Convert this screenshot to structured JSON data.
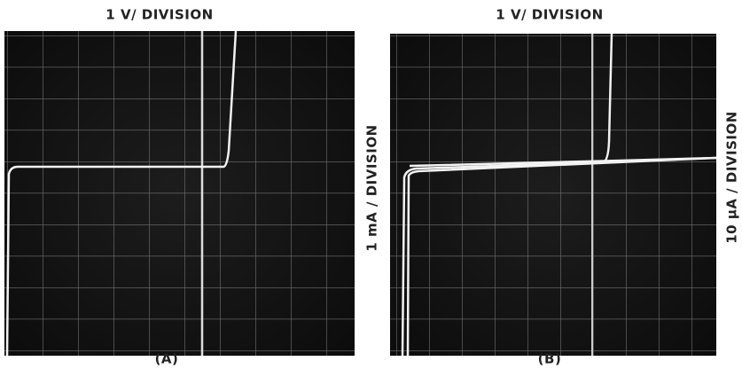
{
  "panels": [
    {
      "top_label": "1 V/ DIVISION",
      "side_label": "1 mA / DIVISION",
      "caption": "(A)"
    },
    {
      "top_label": "1 V/ DIVISION",
      "side_label": "10 μA / DIVISION",
      "caption": "(B)"
    }
  ]
}
